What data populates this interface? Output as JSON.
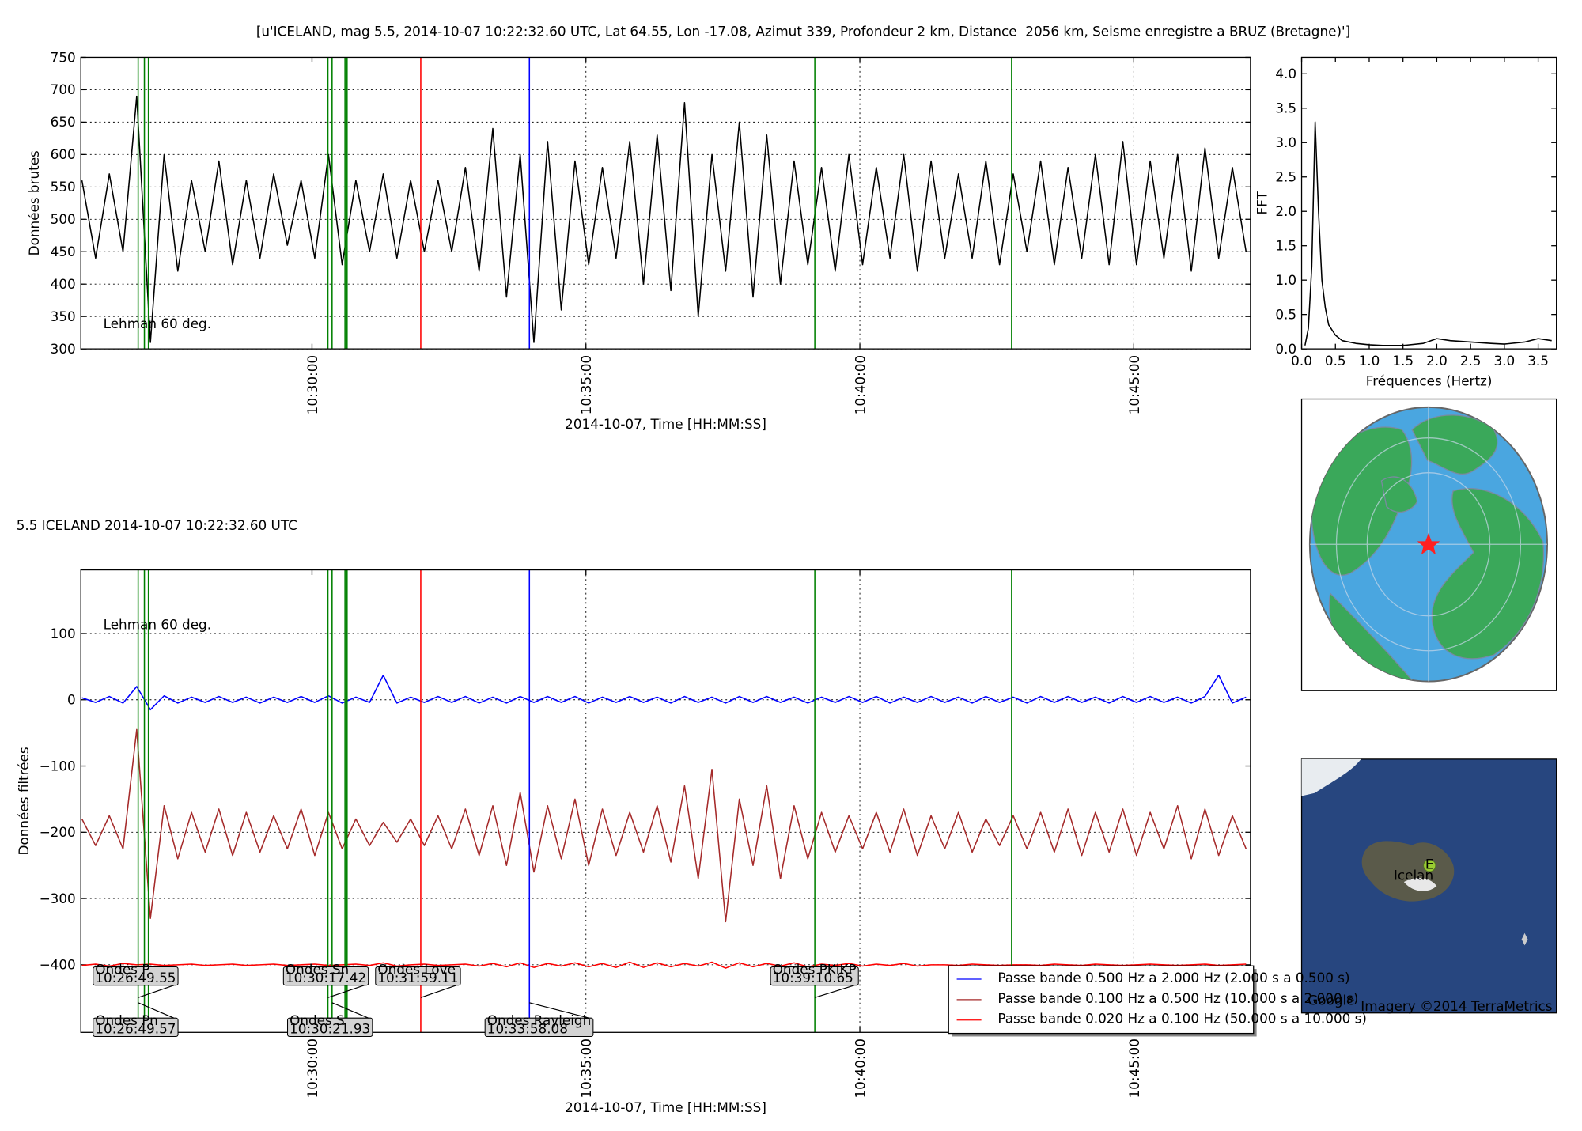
{
  "chart_data": [
    {
      "type": "line",
      "title": "[u'ICELAND, mag 5.5, 2014-10-07 10:22:32.60 UTC, Lat 64.55, Lon -17.08, Azimut 339, Profondeur 2 km, Distance  2056 km, Seisme enregistre a BRUZ (Bretagne)']",
      "annotation": "Lehman 60 deg.",
      "annotation_color": "#f08080",
      "ylabel": "Données brutes",
      "xlabel": "2014-10-07, Time [HH:MM:SS]",
      "xlim": [
        625.78,
        647.13
      ],
      "xticks": [
        {
          "value": 630,
          "label": "10:30:00"
        },
        {
          "value": 635,
          "label": "10:35:00"
        },
        {
          "value": 640,
          "label": "10:40:00"
        },
        {
          "value": 645,
          "label": "10:45:00"
        }
      ],
      "ylim": [
        300,
        750
      ],
      "yticks": [
        300,
        350,
        400,
        450,
        500,
        550,
        600,
        650,
        700,
        750
      ],
      "grid": true,
      "vlines": [
        {
          "x": 626.826,
          "color": "#008000"
        },
        {
          "x": 626.94,
          "color": "#008000"
        },
        {
          "x": 627.014,
          "color": "#008000"
        },
        {
          "x": 630.29,
          "color": "#008000"
        },
        {
          "x": 630.366,
          "color": "#008000"
        },
        {
          "x": 630.602,
          "color": "#008000"
        },
        {
          "x": 630.64,
          "color": "#008000"
        },
        {
          "x": 631.985,
          "color": "#ff0000"
        },
        {
          "x": 633.968,
          "color": "#0000ff"
        },
        {
          "x": 639.178,
          "color": "#008000"
        },
        {
          "x": 642.77,
          "color": "#008000"
        }
      ],
      "x": [
        625.8,
        626.05,
        626.3,
        626.55,
        626.8,
        627.05,
        627.3,
        627.55,
        627.8,
        628.05,
        628.3,
        628.55,
        628.8,
        629.05,
        629.3,
        629.55,
        629.8,
        630.05,
        630.3,
        630.55,
        630.8,
        631.05,
        631.3,
        631.55,
        631.8,
        632.05,
        632.3,
        632.55,
        632.8,
        633.05,
        633.3,
        633.55,
        633.8,
        634.05,
        634.3,
        634.55,
        634.8,
        635.05,
        635.3,
        635.55,
        635.8,
        636.05,
        636.3,
        636.55,
        636.8,
        637.05,
        637.3,
        637.55,
        637.8,
        638.05,
        638.3,
        638.55,
        638.8,
        639.05,
        639.3,
        639.55,
        639.8,
        640.05,
        640.3,
        640.55,
        640.8,
        641.05,
        641.3,
        641.55,
        641.8,
        642.05,
        642.3,
        642.55,
        642.8,
        643.05,
        643.3,
        643.55,
        643.8,
        644.05,
        644.3,
        644.55,
        644.8,
        645.05,
        645.3,
        645.55,
        645.8,
        646.05,
        646.3,
        646.55,
        646.8,
        647.05
      ],
      "series": [
        {
          "color": "#000000",
          "values": [
            560,
            440,
            570,
            450,
            690,
            310,
            600,
            420,
            560,
            450,
            590,
            430,
            560,
            440,
            570,
            460,
            560,
            440,
            600,
            430,
            560,
            450,
            570,
            440,
            560,
            450,
            560,
            450,
            580,
            420,
            640,
            380,
            600,
            310,
            620,
            360,
            590,
            430,
            580,
            440,
            620,
            400,
            630,
            390,
            680,
            350,
            600,
            420,
            650,
            380,
            630,
            400,
            590,
            430,
            580,
            420,
            600,
            430,
            580,
            440,
            600,
            420,
            590,
            440,
            570,
            440,
            590,
            430,
            570,
            450,
            590,
            430,
            580,
            440,
            600,
            430,
            620,
            430,
            590,
            440,
            600,
            420,
            610,
            440,
            580,
            450
          ]
        }
      ]
    },
    {
      "type": "line",
      "ylabel": "FFT",
      "xlabel": "Fréquences (Hertz)",
      "xlim": [
        0,
        3.77
      ],
      "xticks": [
        {
          "value": 0,
          "label": "0.0"
        },
        0.5,
        {
          "value": 1,
          "label": "1.0"
        },
        1.5,
        {
          "value": 2,
          "label": "2.0"
        },
        2.5,
        {
          "value": 3,
          "label": "3.0"
        },
        3.5
      ],
      "ylim": [
        0,
        4.24
      ],
      "yticks": [
        {
          "value": 0,
          "label": "0.0"
        },
        0.5,
        {
          "value": 1,
          "label": "1.0"
        },
        1.5,
        {
          "value": 2,
          "label": "2.0"
        },
        2.5,
        {
          "value": 3,
          "label": "3.0"
        },
        3.5,
        {
          "value": 4,
          "label": "4.0"
        }
      ],
      "grid": false,
      "x": [
        0.05,
        0.1,
        0.15,
        0.2,
        0.25,
        0.3,
        0.35,
        0.4,
        0.5,
        0.6,
        0.8,
        1.0,
        1.2,
        1.5,
        1.8,
        2.0,
        2.2,
        2.5,
        2.8,
        3.0,
        3.3,
        3.5,
        3.7
      ],
      "series": [
        {
          "color": "#000000",
          "values": [
            0.05,
            0.3,
            1.2,
            3.3,
            2.0,
            1.0,
            0.6,
            0.35,
            0.2,
            0.12,
            0.08,
            0.06,
            0.05,
            0.05,
            0.08,
            0.15,
            0.12,
            0.1,
            0.08,
            0.07,
            0.1,
            0.15,
            0.12
          ]
        }
      ]
    },
    {
      "type": "line",
      "title": "5.5 ICELAND 2014-10-07 10:22:32.60 UTC",
      "title_color": "#f08080",
      "annotation": "Lehman 60 deg.",
      "annotation_color": "#8b1a8b",
      "ylabel": "Données filtrées",
      "xlabel": "2014-10-07, Time [HH:MM:SS]",
      "xlim": [
        625.78,
        647.13
      ],
      "xticks": [
        {
          "value": 630,
          "label": "10:30:00"
        },
        {
          "value": 635,
          "label": "10:35:00"
        },
        {
          "value": 640,
          "label": "10:40:00"
        },
        {
          "value": 645,
          "label": "10:45:00"
        }
      ],
      "ylim": [
        -502,
        196
      ],
      "yticks": [
        {
          "value": -400,
          "label": "−400"
        },
        {
          "value": -300,
          "label": "−300"
        },
        {
          "value": -200,
          "label": "−200"
        },
        {
          "value": -100,
          "label": "−100"
        },
        0,
        100
      ],
      "grid": true,
      "legend": "lower right",
      "vlines": [
        {
          "x": 626.826,
          "color": "#008000"
        },
        {
          "x": 626.94,
          "color": "#008000"
        },
        {
          "x": 627.014,
          "color": "#008000"
        },
        {
          "x": 630.29,
          "color": "#008000"
        },
        {
          "x": 630.366,
          "color": "#008000"
        },
        {
          "x": 630.602,
          "color": "#008000"
        },
        {
          "x": 630.64,
          "color": "#008000"
        },
        {
          "x": 631.985,
          "color": "#ff0000"
        },
        {
          "x": 633.968,
          "color": "#0000ff"
        },
        {
          "x": 639.178,
          "color": "#008000"
        },
        {
          "x": 642.77,
          "color": "#008000"
        }
      ],
      "phase_labels": [
        {
          "name": "Ondes P",
          "time": "10:26:49.55",
          "x": 626.826
        },
        {
          "name": "Ondes Pn",
          "time": "10:26:49.57",
          "x": 626.826
        },
        {
          "name": "Ondes Sn",
          "time": "10:30:17.42",
          "x": 630.29
        },
        {
          "name": "Ondes S",
          "time": "10:30:21.93",
          "x": 630.366
        },
        {
          "name": "Ondes Love",
          "time": "10:31:59.11",
          "x": 631.985
        },
        {
          "name": "Ondes Rayleigh",
          "time": "10:33:58.08",
          "x": 633.968
        },
        {
          "name": "Ondes PKiKP",
          "time": "10:39:10.65",
          "x": 639.178
        }
      ],
      "x": [
        625.8,
        626.05,
        626.3,
        626.55,
        626.8,
        627.05,
        627.3,
        627.55,
        627.8,
        628.05,
        628.3,
        628.55,
        628.8,
        629.05,
        629.3,
        629.55,
        629.8,
        630.05,
        630.3,
        630.55,
        630.8,
        631.05,
        631.3,
        631.55,
        631.8,
        632.05,
        632.3,
        632.55,
        632.8,
        633.05,
        633.3,
        633.55,
        633.8,
        634.05,
        634.3,
        634.55,
        634.8,
        635.05,
        635.3,
        635.55,
        635.8,
        636.05,
        636.3,
        636.55,
        636.8,
        637.05,
        637.3,
        637.55,
        637.8,
        638.05,
        638.3,
        638.55,
        638.8,
        639.05,
        639.3,
        639.55,
        639.8,
        640.05,
        640.3,
        640.55,
        640.8,
        641.05,
        641.3,
        641.55,
        641.8,
        642.05,
        642.3,
        642.55,
        642.8,
        643.05,
        643.3,
        643.55,
        643.8,
        644.05,
        644.3,
        644.55,
        644.8,
        645.05,
        645.3,
        645.55,
        645.8,
        646.05,
        646.3,
        646.55,
        646.8,
        647.05
      ],
      "series": [
        {
          "name": "Passe bande 0.500 Hz a 2.000 Hz (2.000 s a 0.500 s)",
          "color": "#0000ff",
          "values": [
            3,
            -4,
            5,
            -5,
            20,
            -15,
            6,
            -5,
            4,
            -4,
            5,
            -4,
            4,
            -5,
            4,
            -4,
            5,
            -4,
            6,
            -5,
            4,
            -4,
            37,
            -5,
            4,
            -4,
            5,
            -4,
            5,
            -5,
            4,
            -5,
            5,
            -4,
            5,
            -4,
            5,
            -5,
            4,
            -4,
            5,
            -4,
            4,
            -5,
            5,
            -4,
            4,
            -5,
            5,
            -4,
            5,
            -4,
            4,
            -5,
            4,
            -4,
            5,
            -4,
            5,
            -5,
            4,
            -4,
            5,
            -4,
            4,
            -5,
            5,
            -4,
            4,
            -5,
            5,
            -4,
            5,
            -4,
            4,
            -5,
            5,
            -4,
            5,
            -4,
            4,
            -5,
            5,
            37,
            -5,
            4
          ]
        },
        {
          "name": "Passe bande 0.100 Hz a 0.500 Hz (10.000 s a 2.000 s)",
          "color": "#a52a2a",
          "values": [
            -180,
            -220,
            -175,
            -225,
            -45,
            -330,
            -160,
            -240,
            -170,
            -230,
            -165,
            -235,
            -170,
            -230,
            -175,
            -225,
            -165,
            -235,
            -170,
            -225,
            -180,
            -220,
            -185,
            -215,
            -180,
            -220,
            -175,
            -225,
            -165,
            -235,
            -160,
            -250,
            -140,
            -260,
            -160,
            -240,
            -150,
            -250,
            -165,
            -235,
            -170,
            -230,
            -160,
            -245,
            -130,
            -270,
            -105,
            -335,
            -150,
            -250,
            -130,
            -270,
            -160,
            -240,
            -170,
            -230,
            -175,
            -225,
            -170,
            -230,
            -165,
            -235,
            -175,
            -225,
            -170,
            -230,
            -180,
            -220,
            -175,
            -225,
            -170,
            -230,
            -165,
            -235,
            -170,
            -230,
            -165,
            -235,
            -170,
            -225,
            -160,
            -240,
            -165,
            -235,
            -175,
            -225
          ]
        },
        {
          "name": "Passe bande 0.020 Hz a 0.100 Hz (50.000 s a 10.000 s)",
          "color": "#ff0000",
          "values": [
            -401,
            -399,
            -402,
            -398,
            -400,
            -399,
            -401,
            -400,
            -399,
            -401,
            -400,
            -399,
            -401,
            -400,
            -399,
            -401,
            -400,
            -399,
            -401,
            -400,
            -399,
            -401,
            -397,
            -402,
            -400,
            -399,
            -401,
            -400,
            -399,
            -402,
            -398,
            -403,
            -397,
            -404,
            -398,
            -402,
            -397,
            -403,
            -398,
            -404,
            -396,
            -404,
            -397,
            -403,
            -398,
            -402,
            -396,
            -405,
            -397,
            -403,
            -398,
            -402,
            -397,
            -403,
            -399,
            -401,
            -398,
            -402,
            -399,
            -401,
            -398,
            -402,
            -400,
            -400,
            -401,
            -399,
            -400,
            -401,
            -400,
            -400,
            -401,
            -399,
            -400,
            -401,
            -399,
            -400,
            -401,
            -400,
            -399,
            -400,
            -401,
            -400,
            -399,
            -401,
            -400,
            -399
          ]
        }
      ]
    }
  ],
  "maps": {
    "label": "Icelan",
    "pin": "E",
    "brand": "Google",
    "credit": "Imagery ©2014 TerraMetrics"
  }
}
